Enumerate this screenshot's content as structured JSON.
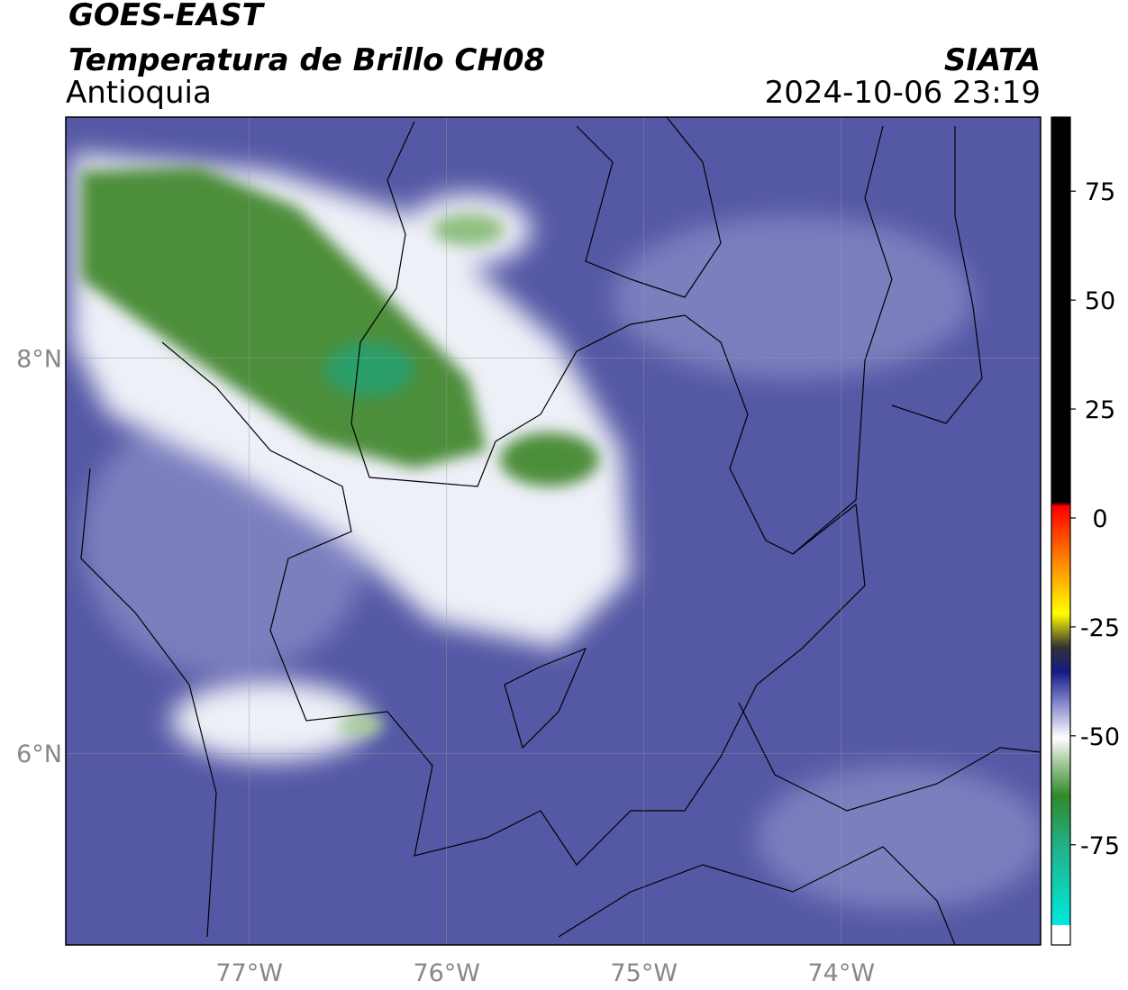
{
  "header": {
    "satellite": "GOES-EAST",
    "product": "Temperatura de Brillo CH08",
    "region": "Antioquia",
    "agency": "SIATA",
    "datetime": "2024-10-06 23:19"
  },
  "map": {
    "xlim": [
      -77.93,
      -72.99
    ],
    "ylim": [
      5.03,
      9.22
    ],
    "grid": true,
    "xticks": [
      {
        "value": -77,
        "label": "77°W"
      },
      {
        "value": -76,
        "label": "76°W"
      },
      {
        "value": -75,
        "label": "75°W"
      },
      {
        "value": -74,
        "label": "74°W"
      }
    ],
    "yticks": [
      {
        "value": 6,
        "label": "6°N"
      },
      {
        "value": 8,
        "label": "8°N"
      }
    ]
  },
  "colorbar": {
    "clim": [
      -98,
      92
    ],
    "ticks": [
      -75,
      -50,
      -25,
      0,
      25,
      50,
      75
    ]
  }
}
